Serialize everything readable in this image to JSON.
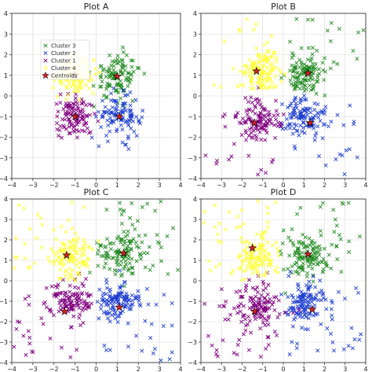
{
  "chart_data": [
    {
      "type": "scatter",
      "title": "Plot A",
      "xlim": [
        -4,
        4
      ],
      "ylim": [
        -4,
        4
      ],
      "xticks": [
        "−4",
        "−3",
        "−2",
        "−1",
        "0",
        "1",
        "2",
        "3",
        "4"
      ],
      "yticks": [
        "−4",
        "−3",
        "−2",
        "−1",
        "0",
        "1",
        "2",
        "3",
        "4"
      ],
      "grid": true,
      "legend": {
        "placement": "upper-left",
        "entries": [
          "Cluster 3",
          "Cluster 2",
          "Cluster 1",
          "Cluster 4",
          "Centroids"
        ]
      },
      "series": [
        {
          "name": "Cluster 3",
          "color": "#228B22",
          "marker": "x",
          "center": [
            1.0,
            1.0
          ],
          "spread": 0.55,
          "count": 110,
          "outliers": 0
        },
        {
          "name": "Cluster 2",
          "color": "#1f3fd0",
          "marker": "x",
          "center": [
            1.1,
            -1.0
          ],
          "spread": 0.5,
          "count": 110,
          "outliers": 0
        },
        {
          "name": "Cluster 1",
          "color": "#800080",
          "marker": "x",
          "center": [
            -1.0,
            -1.0
          ],
          "spread": 0.5,
          "count": 110,
          "outliers": 0
        },
        {
          "name": "Cluster 4",
          "color": "#ffff33",
          "marker": "x",
          "center": [
            -1.0,
            1.0
          ],
          "spread": 0.45,
          "count": 110,
          "outliers": 0
        }
      ],
      "centroids": [
        [
          1.0,
          0.95
        ],
        [
          1.1,
          -1.0
        ],
        [
          -1.0,
          -1.0
        ],
        [
          -1.0,
          1.0
        ]
      ],
      "centroid_color": "#d62020"
    },
    {
      "type": "scatter",
      "title": "Plot B",
      "xlim": [
        -4,
        4
      ],
      "ylim": [
        -4,
        4
      ],
      "xticks": [
        "−4",
        "−3",
        "−2",
        "−1",
        "0",
        "1",
        "2",
        "3",
        "4"
      ],
      "yticks": [
        "−4",
        "−3",
        "−2",
        "−1",
        "0",
        "1",
        "2",
        "3",
        "4"
      ],
      "grid": true,
      "series": [
        {
          "name": "Cluster 3",
          "color": "#228B22",
          "marker": "x",
          "center": [
            1.1,
            1.0
          ],
          "spread": 0.5,
          "count": 110,
          "outliers": 22
        },
        {
          "name": "Cluster 2",
          "color": "#1f3fd0",
          "marker": "x",
          "center": [
            1.1,
            -1.0
          ],
          "spread": 0.5,
          "count": 110,
          "outliers": 22
        },
        {
          "name": "Cluster 1",
          "color": "#800080",
          "marker": "x",
          "center": [
            -1.2,
            -1.2
          ],
          "spread": 0.5,
          "count": 110,
          "outliers": 22
        },
        {
          "name": "Cluster 4",
          "color": "#ffff33",
          "marker": "x",
          "center": [
            -1.1,
            1.1
          ],
          "spread": 0.5,
          "count": 110,
          "outliers": 22
        }
      ],
      "centroids": [
        [
          1.2,
          1.1
        ],
        [
          1.3,
          -1.3
        ],
        [
          -1.4,
          -1.3
        ],
        [
          -1.3,
          1.2
        ]
      ],
      "centroid_color": "#d62020"
    },
    {
      "type": "scatter",
      "title": "Plot C",
      "xlim": [
        -4,
        4
      ],
      "ylim": [
        -4,
        4
      ],
      "xticks": [
        "−4",
        "−3",
        "−2",
        "−1",
        "0",
        "1",
        "2",
        "3",
        "4"
      ],
      "yticks": [
        "−4",
        "−3",
        "−2",
        "−1",
        "0",
        "1",
        "2",
        "3",
        "4"
      ],
      "grid": true,
      "series": [
        {
          "name": "Cluster 3",
          "color": "#228B22",
          "marker": "x",
          "center": [
            1.1,
            1.3
          ],
          "spread": 0.55,
          "count": 110,
          "outliers": 30
        },
        {
          "name": "Cluster 2",
          "color": "#1f3fd0",
          "marker": "x",
          "center": [
            1.0,
            -1.0
          ],
          "spread": 0.5,
          "count": 110,
          "outliers": 30
        },
        {
          "name": "Cluster 1",
          "color": "#800080",
          "marker": "x",
          "center": [
            -1.2,
            -1.0
          ],
          "spread": 0.55,
          "count": 110,
          "outliers": 30
        },
        {
          "name": "Cluster 4",
          "color": "#ffff33",
          "marker": "x",
          "center": [
            -1.2,
            1.2
          ],
          "spread": 0.5,
          "count": 110,
          "outliers": 30
        }
      ],
      "centroids": [
        [
          1.3,
          1.35
        ],
        [
          1.1,
          -1.3
        ],
        [
          -1.5,
          -1.5
        ],
        [
          -1.4,
          1.25
        ]
      ],
      "centroid_color": "#d62020"
    },
    {
      "type": "scatter",
      "title": "Plot D",
      "xlim": [
        -4,
        4
      ],
      "ylim": [
        -4,
        4
      ],
      "xticks": [
        "−4",
        "−3",
        "−2",
        "−1",
        "0",
        "1",
        "2",
        "3",
        "4"
      ],
      "yticks": [
        "−4",
        "−3",
        "−2",
        "−1",
        "0",
        "1",
        "2",
        "3",
        "4"
      ],
      "grid": true,
      "series": [
        {
          "name": "Cluster 3",
          "color": "#228B22",
          "marker": "x",
          "center": [
            1.1,
            1.1
          ],
          "spread": 0.55,
          "count": 110,
          "outliers": 35
        },
        {
          "name": "Cluster 2",
          "color": "#1f3fd0",
          "marker": "x",
          "center": [
            1.1,
            -1.0
          ],
          "spread": 0.5,
          "count": 110,
          "outliers": 35
        },
        {
          "name": "Cluster 1",
          "color": "#800080",
          "marker": "x",
          "center": [
            -1.2,
            -1.2
          ],
          "spread": 0.55,
          "count": 110,
          "outliers": 35
        },
        {
          "name": "Cluster 4",
          "color": "#ffff33",
          "marker": "x",
          "center": [
            -1.3,
            1.1
          ],
          "spread": 0.5,
          "count": 110,
          "outliers": 35
        }
      ],
      "centroids": [
        [
          1.2,
          1.3
        ],
        [
          1.4,
          -1.4
        ],
        [
          -1.4,
          -1.5
        ],
        [
          -1.5,
          1.6
        ]
      ],
      "centroid_color": "#d62020"
    }
  ]
}
